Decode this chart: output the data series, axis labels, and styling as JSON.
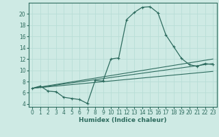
{
  "title": "",
  "xlabel": "Humidex (Indice chaleur)",
  "ylabel": "",
  "bg_color": "#ceeae4",
  "line_color": "#2d6b5e",
  "grid_color": "#b8ddd6",
  "x_ticks": [
    0,
    1,
    2,
    3,
    4,
    5,
    6,
    7,
    8,
    9,
    10,
    11,
    12,
    13,
    14,
    15,
    16,
    17,
    18,
    19,
    20,
    21,
    22,
    23
  ],
  "y_ticks": [
    4,
    6,
    8,
    10,
    12,
    14,
    16,
    18,
    20
  ],
  "ylim": [
    3.5,
    22.0
  ],
  "xlim": [
    -0.5,
    23.5
  ],
  "line1_x": [
    0,
    1,
    2,
    3,
    4,
    5,
    6,
    7,
    8,
    9,
    10,
    11,
    12,
    13,
    14,
    15,
    16,
    17,
    18,
    19,
    20,
    21,
    22,
    23
  ],
  "line1_y": [
    6.8,
    7.2,
    6.3,
    6.2,
    5.2,
    5.0,
    4.8,
    4.1,
    8.2,
    8.1,
    12.0,
    12.2,
    19.0,
    20.3,
    21.2,
    21.3,
    20.2,
    16.3,
    14.2,
    12.1,
    11.0,
    10.7,
    11.2,
    11.0
  ],
  "line2_x": [
    0,
    23
  ],
  "line2_y": [
    6.8,
    9.8
  ],
  "line3_x": [
    0,
    23
  ],
  "line3_y": [
    6.8,
    11.2
  ],
  "line4_x": [
    0,
    23
  ],
  "line4_y": [
    6.8,
    12.0
  ]
}
